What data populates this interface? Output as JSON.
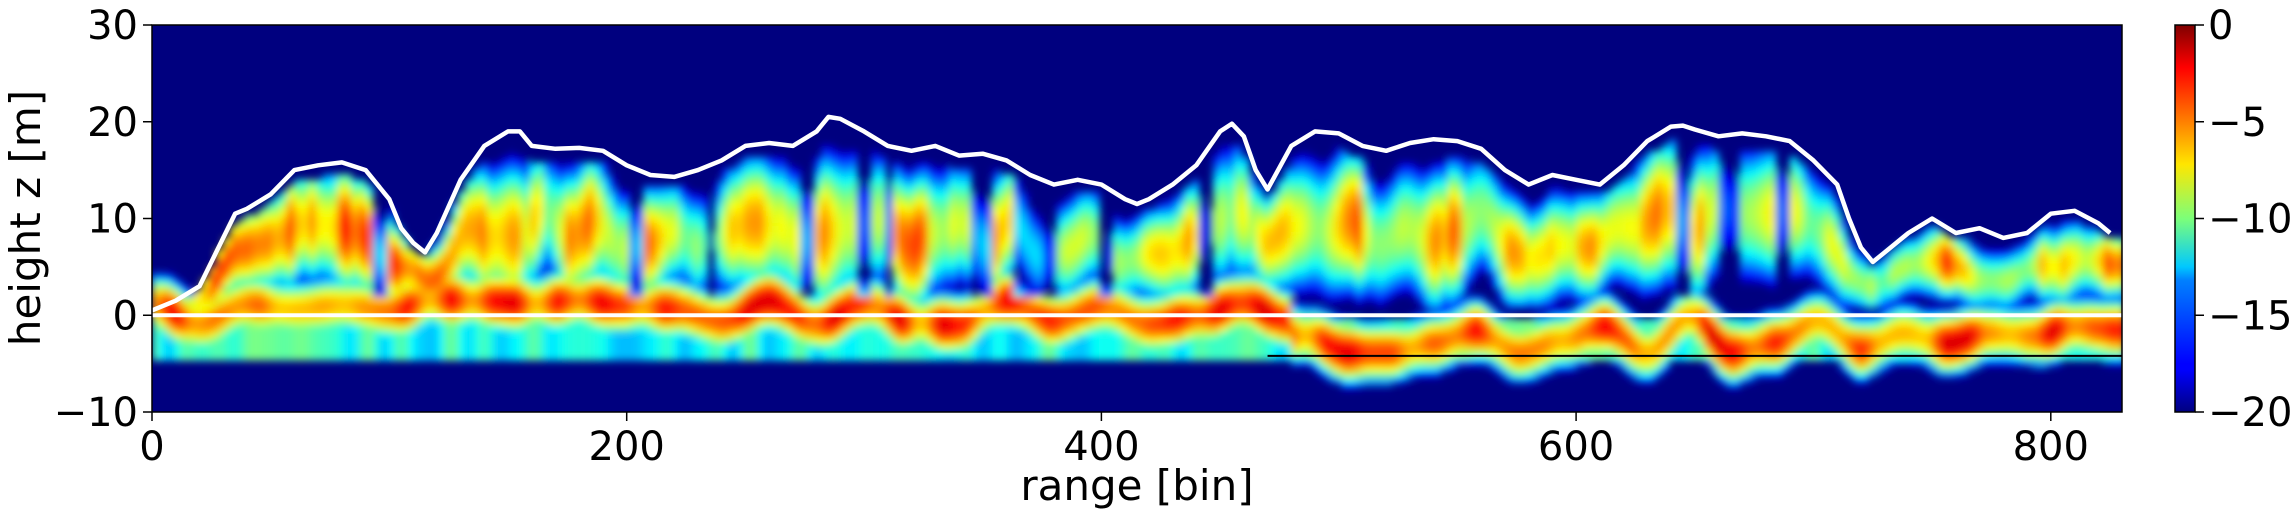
{
  "chart_data": {
    "type": "heatmap",
    "xlabel": "range [bin]",
    "ylabel": "height z [m]",
    "xlim": [
      0,
      830
    ],
    "ylim": [
      -10,
      30
    ],
    "xticks": [
      0,
      200,
      400,
      600,
      800
    ],
    "yticks": [
      -10,
      0,
      10,
      20,
      30
    ],
    "xtick_labels": [
      "0",
      "200",
      "400",
      "600",
      "800"
    ],
    "ytick_labels": [
      "−10",
      "0",
      "10",
      "20",
      "30"
    ],
    "colorbar": {
      "colormap": "jet",
      "range": [
        -20,
        0
      ],
      "ticks": [
        0,
        -5,
        -10,
        -15,
        -20
      ],
      "tick_labels": [
        "0",
        "−5",
        "−10",
        "−15",
        "−20"
      ]
    },
    "grid": false,
    "reference_line": {
      "y": 0,
      "color": "#ffffff"
    },
    "bottom_line": {
      "y": -4.2,
      "x_start": 470,
      "x_end": 830,
      "color": "#000000"
    },
    "canopy_height_line": {
      "color": "#ffffff",
      "x": [
        0,
        10,
        20,
        30,
        35,
        40,
        50,
        60,
        70,
        80,
        90,
        100,
        105,
        110,
        115,
        120,
        130,
        140,
        150,
        155,
        160,
        170,
        180,
        190,
        200,
        210,
        220,
        230,
        240,
        250,
        260,
        270,
        280,
        285,
        290,
        300,
        310,
        320,
        330,
        340,
        350,
        360,
        370,
        380,
        390,
        400,
        410,
        415,
        420,
        430,
        440,
        450,
        455,
        460,
        465,
        470,
        480,
        490,
        500,
        510,
        520,
        530,
        540,
        550,
        560,
        570,
        580,
        590,
        600,
        610,
        620,
        630,
        640,
        645,
        650,
        660,
        670,
        680,
        690,
        700,
        710,
        715,
        720,
        725,
        730,
        740,
        750,
        760,
        770,
        780,
        790,
        800,
        810,
        820,
        825
      ],
      "y": [
        0.5,
        1.5,
        3.0,
        8.0,
        10.5,
        11.0,
        12.5,
        15.0,
        15.5,
        15.8,
        15.0,
        12.0,
        9.0,
        7.5,
        6.5,
        8.5,
        14.0,
        17.5,
        19.0,
        19.0,
        17.5,
        17.2,
        17.3,
        17.0,
        15.5,
        14.5,
        14.3,
        15.0,
        16.0,
        17.5,
        17.8,
        17.5,
        19.0,
        20.5,
        20.3,
        19.0,
        17.5,
        17.0,
        17.5,
        16.5,
        16.7,
        16.0,
        14.5,
        13.5,
        14.0,
        13.5,
        12.0,
        11.5,
        12.0,
        13.5,
        15.5,
        19.0,
        19.8,
        18.5,
        15.0,
        13.0,
        17.5,
        19.0,
        18.8,
        17.5,
        17.0,
        17.8,
        18.2,
        18.0,
        17.2,
        15.0,
        13.5,
        14.5,
        14.0,
        13.5,
        15.5,
        18.0,
        19.5,
        19.6,
        19.2,
        18.5,
        18.8,
        18.5,
        18.0,
        16.0,
        13.5,
        10.0,
        7.0,
        5.5,
        6.5,
        8.5,
        10.0,
        8.5,
        9.0,
        8.0,
        8.5,
        10.5,
        10.8,
        9.5,
        8.5
      ]
    }
  }
}
